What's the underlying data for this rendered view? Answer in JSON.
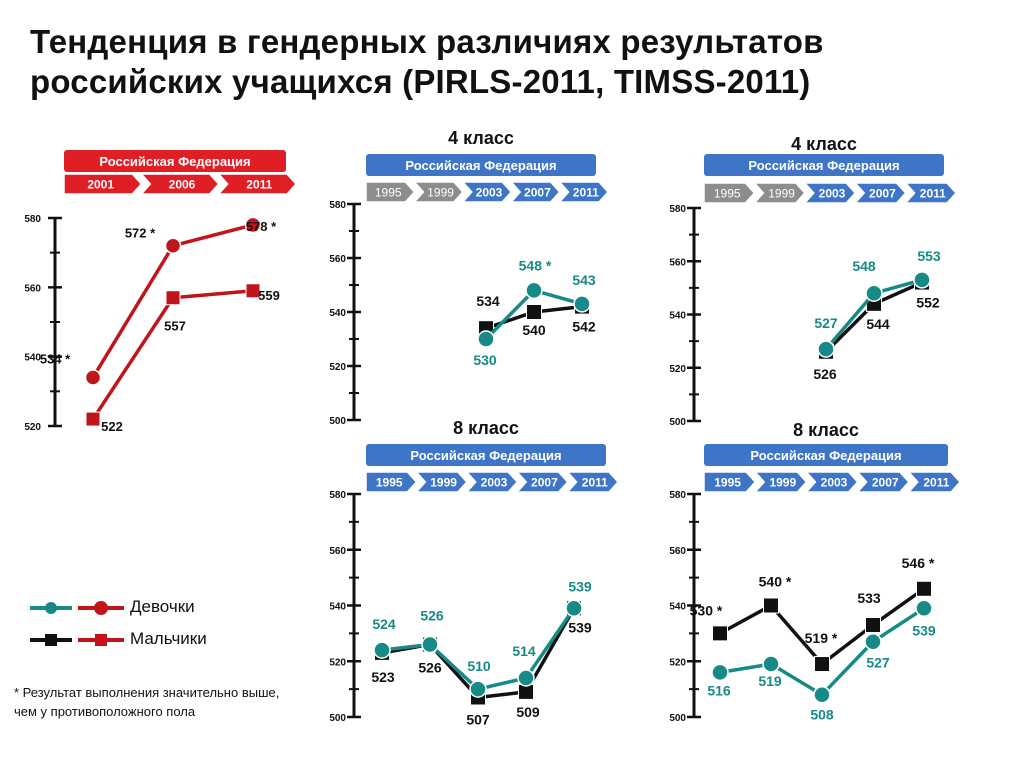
{
  "title": {
    "line1": "Тенденция в гендерных различиях результатов",
    "line2": "российских учащихся (PIRLS-2011, TIMSS-2011)"
  },
  "colors": {
    "girls_pirls": "#c0151b",
    "boys_pirls": "#c0151b",
    "girls_timss": "#178a88",
    "boys_timss": "#111111",
    "banner_red": "#e01e25",
    "banner_blue": "#3f75c6",
    "years_gray": "#8d8d8d"
  },
  "legend": {
    "girls": "Девочки",
    "boys": "Мальчики"
  },
  "footnote": {
    "line1": "* Результат выполнения значительно выше,",
    "line2": "чем у противоположного пола"
  },
  "chart_data": [
    {
      "id": "pirls",
      "type": "line",
      "title": "",
      "banner": "Российская Федерация",
      "banner_style": "red",
      "categories": [
        "2001",
        "2006",
        "2011"
      ],
      "active_categories": [
        "2001",
        "2006",
        "2011"
      ],
      "ylim": [
        520,
        580
      ],
      "yticks": [
        520,
        540,
        560,
        580
      ],
      "series": [
        {
          "key": "girls",
          "values": [
            534,
            572,
            578
          ],
          "labels": [
            "534 *",
            "572 *",
            "578 *"
          ]
        },
        {
          "key": "boys",
          "values": [
            522,
            557,
            559
          ],
          "labels": [
            "522",
            "557",
            "559"
          ]
        }
      ]
    },
    {
      "id": "timss-math-4",
      "type": "line",
      "title": "4 класс",
      "banner": "Российская Федерация",
      "banner_style": "blue",
      "categories": [
        "1995",
        "1999",
        "2003",
        "2007",
        "2011"
      ],
      "active_categories": [
        "2003",
        "2007",
        "2011"
      ],
      "ylim": [
        500,
        580
      ],
      "yticks": [
        500,
        520,
        540,
        560,
        580
      ],
      "series": [
        {
          "key": "girls",
          "values": [
            null,
            null,
            530,
            548,
            543
          ],
          "labels": [
            "",
            "",
            "530",
            "548 *",
            "543"
          ]
        },
        {
          "key": "boys",
          "values": [
            null,
            null,
            534,
            540,
            542
          ],
          "labels": [
            "",
            "",
            "534",
            "540",
            "542"
          ]
        }
      ]
    },
    {
      "id": "timss-sci-4",
      "type": "line",
      "title": "4 класс",
      "banner": "Российская Федерация",
      "banner_style": "blue",
      "categories": [
        "1995",
        "1999",
        "2003",
        "2007",
        "2011"
      ],
      "active_categories": [
        "2003",
        "2007",
        "2011"
      ],
      "ylim": [
        500,
        580
      ],
      "yticks": [
        500,
        520,
        540,
        560,
        580
      ],
      "series": [
        {
          "key": "girls",
          "values": [
            null,
            null,
            527,
            548,
            553
          ],
          "labels": [
            "",
            "",
            "527",
            "548",
            "553"
          ]
        },
        {
          "key": "boys",
          "values": [
            null,
            null,
            526,
            544,
            552
          ],
          "labels": [
            "",
            "",
            "526",
            "544",
            "552"
          ]
        }
      ]
    },
    {
      "id": "timss-math-8",
      "type": "line",
      "title": "8 класс",
      "banner": "Российская Федерация",
      "banner_style": "blue",
      "categories": [
        "1995",
        "1999",
        "2003",
        "2007",
        "2011"
      ],
      "active_categories": [
        "1995",
        "1999",
        "2003",
        "2007",
        "2011"
      ],
      "ylim": [
        500,
        580
      ],
      "yticks": [
        500,
        520,
        540,
        560,
        580
      ],
      "series": [
        {
          "key": "girls",
          "values": [
            524,
            526,
            510,
            514,
            539
          ],
          "labels": [
            "524",
            "526",
            "510",
            "514",
            "539"
          ]
        },
        {
          "key": "boys",
          "values": [
            523,
            526,
            507,
            509,
            539
          ],
          "labels": [
            "523",
            "526",
            "507",
            "509",
            "539"
          ]
        }
      ]
    },
    {
      "id": "timss-sci-8",
      "type": "line",
      "title": "8 класс",
      "banner": "Российская Федерация",
      "banner_style": "blue",
      "categories": [
        "1995",
        "1999",
        "2003",
        "2007",
        "2011"
      ],
      "active_categories": [
        "1995",
        "1999",
        "2003",
        "2007",
        "2011"
      ],
      "ylim": [
        500,
        580
      ],
      "yticks": [
        500,
        520,
        540,
        560,
        580
      ],
      "series": [
        {
          "key": "girls",
          "values": [
            516,
            519,
            508,
            527,
            539
          ],
          "labels": [
            "516",
            "519",
            "508",
            "527",
            "539"
          ]
        },
        {
          "key": "boys",
          "values": [
            530,
            540,
            519,
            533,
            546
          ],
          "labels": [
            "530 *",
            "540 *",
            "519 *",
            "533",
            "546 *"
          ]
        }
      ]
    }
  ]
}
